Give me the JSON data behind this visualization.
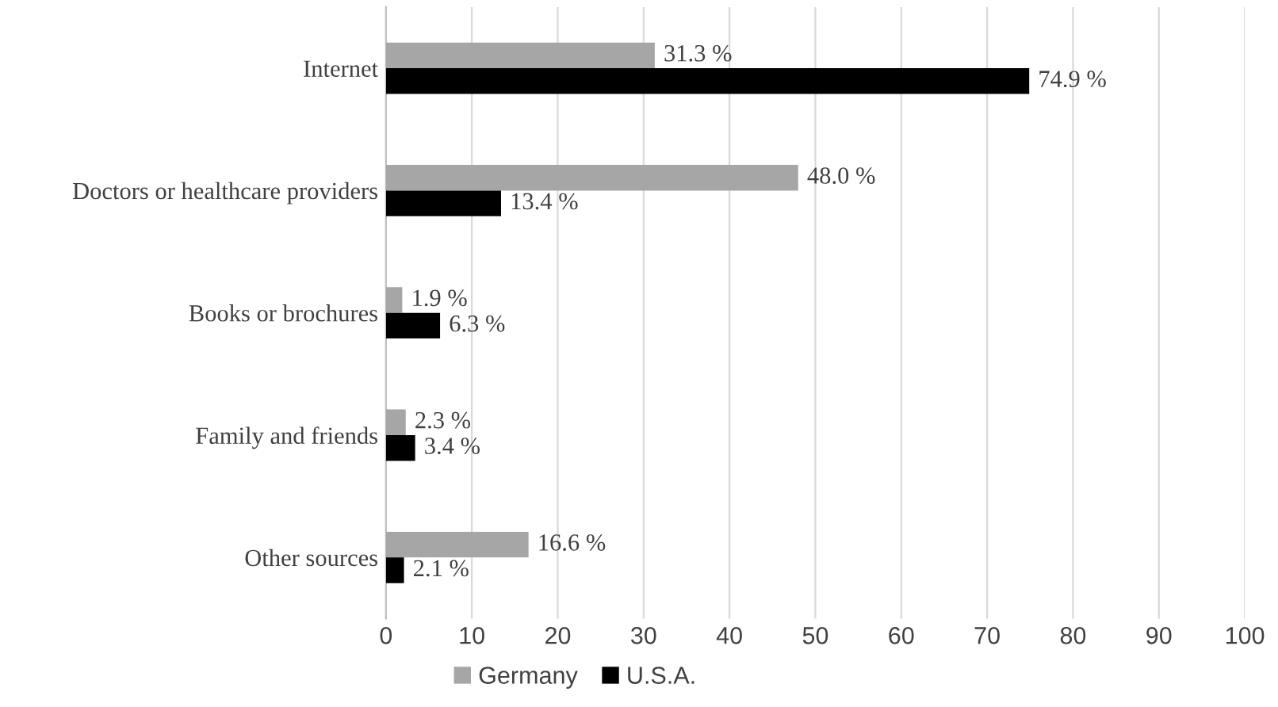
{
  "chart_data": {
    "type": "bar",
    "orientation": "horizontal",
    "categories": [
      "Internet",
      "Doctors or healthcare providers",
      "Books or brochures",
      "Family and friends",
      "Other sources"
    ],
    "series": [
      {
        "name": "Germany",
        "color": "#a6a6a6",
        "values": [
          31.3,
          48.0,
          1.9,
          2.3,
          16.6
        ],
        "value_labels": [
          "31.3 %",
          "48.0 %",
          "1.9 %",
          "2.3 %",
          "16.6 %"
        ]
      },
      {
        "name": "U.S.A.",
        "color": "#000000",
        "values": [
          74.9,
          13.4,
          6.3,
          3.4,
          2.1
        ],
        "value_labels": [
          "74.9 %",
          "13.4 %",
          "6.3 %",
          "3.4 %",
          "2.1 %"
        ]
      }
    ],
    "xlim": [
      0,
      100
    ],
    "xticks": [
      0,
      10,
      20,
      30,
      40,
      50,
      60,
      70,
      80,
      90,
      100
    ],
    "grid": "x",
    "legend": "bottom"
  }
}
